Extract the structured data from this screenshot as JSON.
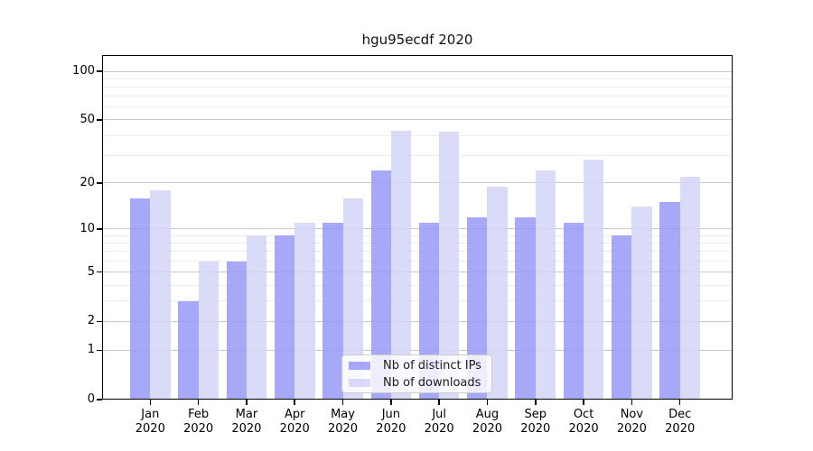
{
  "title": "hgu95ecdf 2020",
  "chart_data": {
    "type": "bar",
    "title": "hgu95ecdf 2020",
    "year": "2020",
    "categories": [
      "Jan 2020",
      "Feb 2020",
      "Mar 2020",
      "Apr 2020",
      "May 2020",
      "Jun 2020",
      "Jul 2020",
      "Aug 2020",
      "Sep 2020",
      "Oct 2020",
      "Nov 2020",
      "Dec 2020"
    ],
    "month_labels": [
      "Jan",
      "Feb",
      "Mar",
      "Apr",
      "May",
      "Jun",
      "Jul",
      "Aug",
      "Sep",
      "Oct",
      "Nov",
      "Dec"
    ],
    "series": [
      {
        "name": "Nb of distinct IPs",
        "color": "#9595f8",
        "values": [
          16,
          3,
          6,
          9,
          11,
          24,
          11,
          12,
          12,
          11,
          9,
          15
        ]
      },
      {
        "name": "Nb of downloads",
        "color": "#d2d2f8",
        "values": [
          18,
          6,
          9,
          11,
          16,
          43,
          42,
          19,
          24,
          28,
          14,
          22
        ]
      }
    ],
    "yscale": "log1p",
    "ylim": [
      0,
      126
    ],
    "ytick_values": [
      0,
      1,
      2,
      5,
      10,
      20,
      50,
      100
    ],
    "major_gridline_values": [
      1,
      2,
      5,
      10,
      20,
      50,
      100
    ],
    "minor_gridline_values": [
      3,
      4,
      6,
      7,
      8,
      9,
      30,
      40,
      60,
      70,
      80,
      90
    ],
    "grid": true,
    "legend_position": "lower center",
    "xlabel": "",
    "ylabel": ""
  },
  "colors": {
    "ips_bar": "#9595f8",
    "downloads_bar": "#d2d2f8",
    "major_grid": "#c9c9c9",
    "minor_grid": "#ececec",
    "axis": "#000000",
    "legend_border": "#cccccc"
  }
}
